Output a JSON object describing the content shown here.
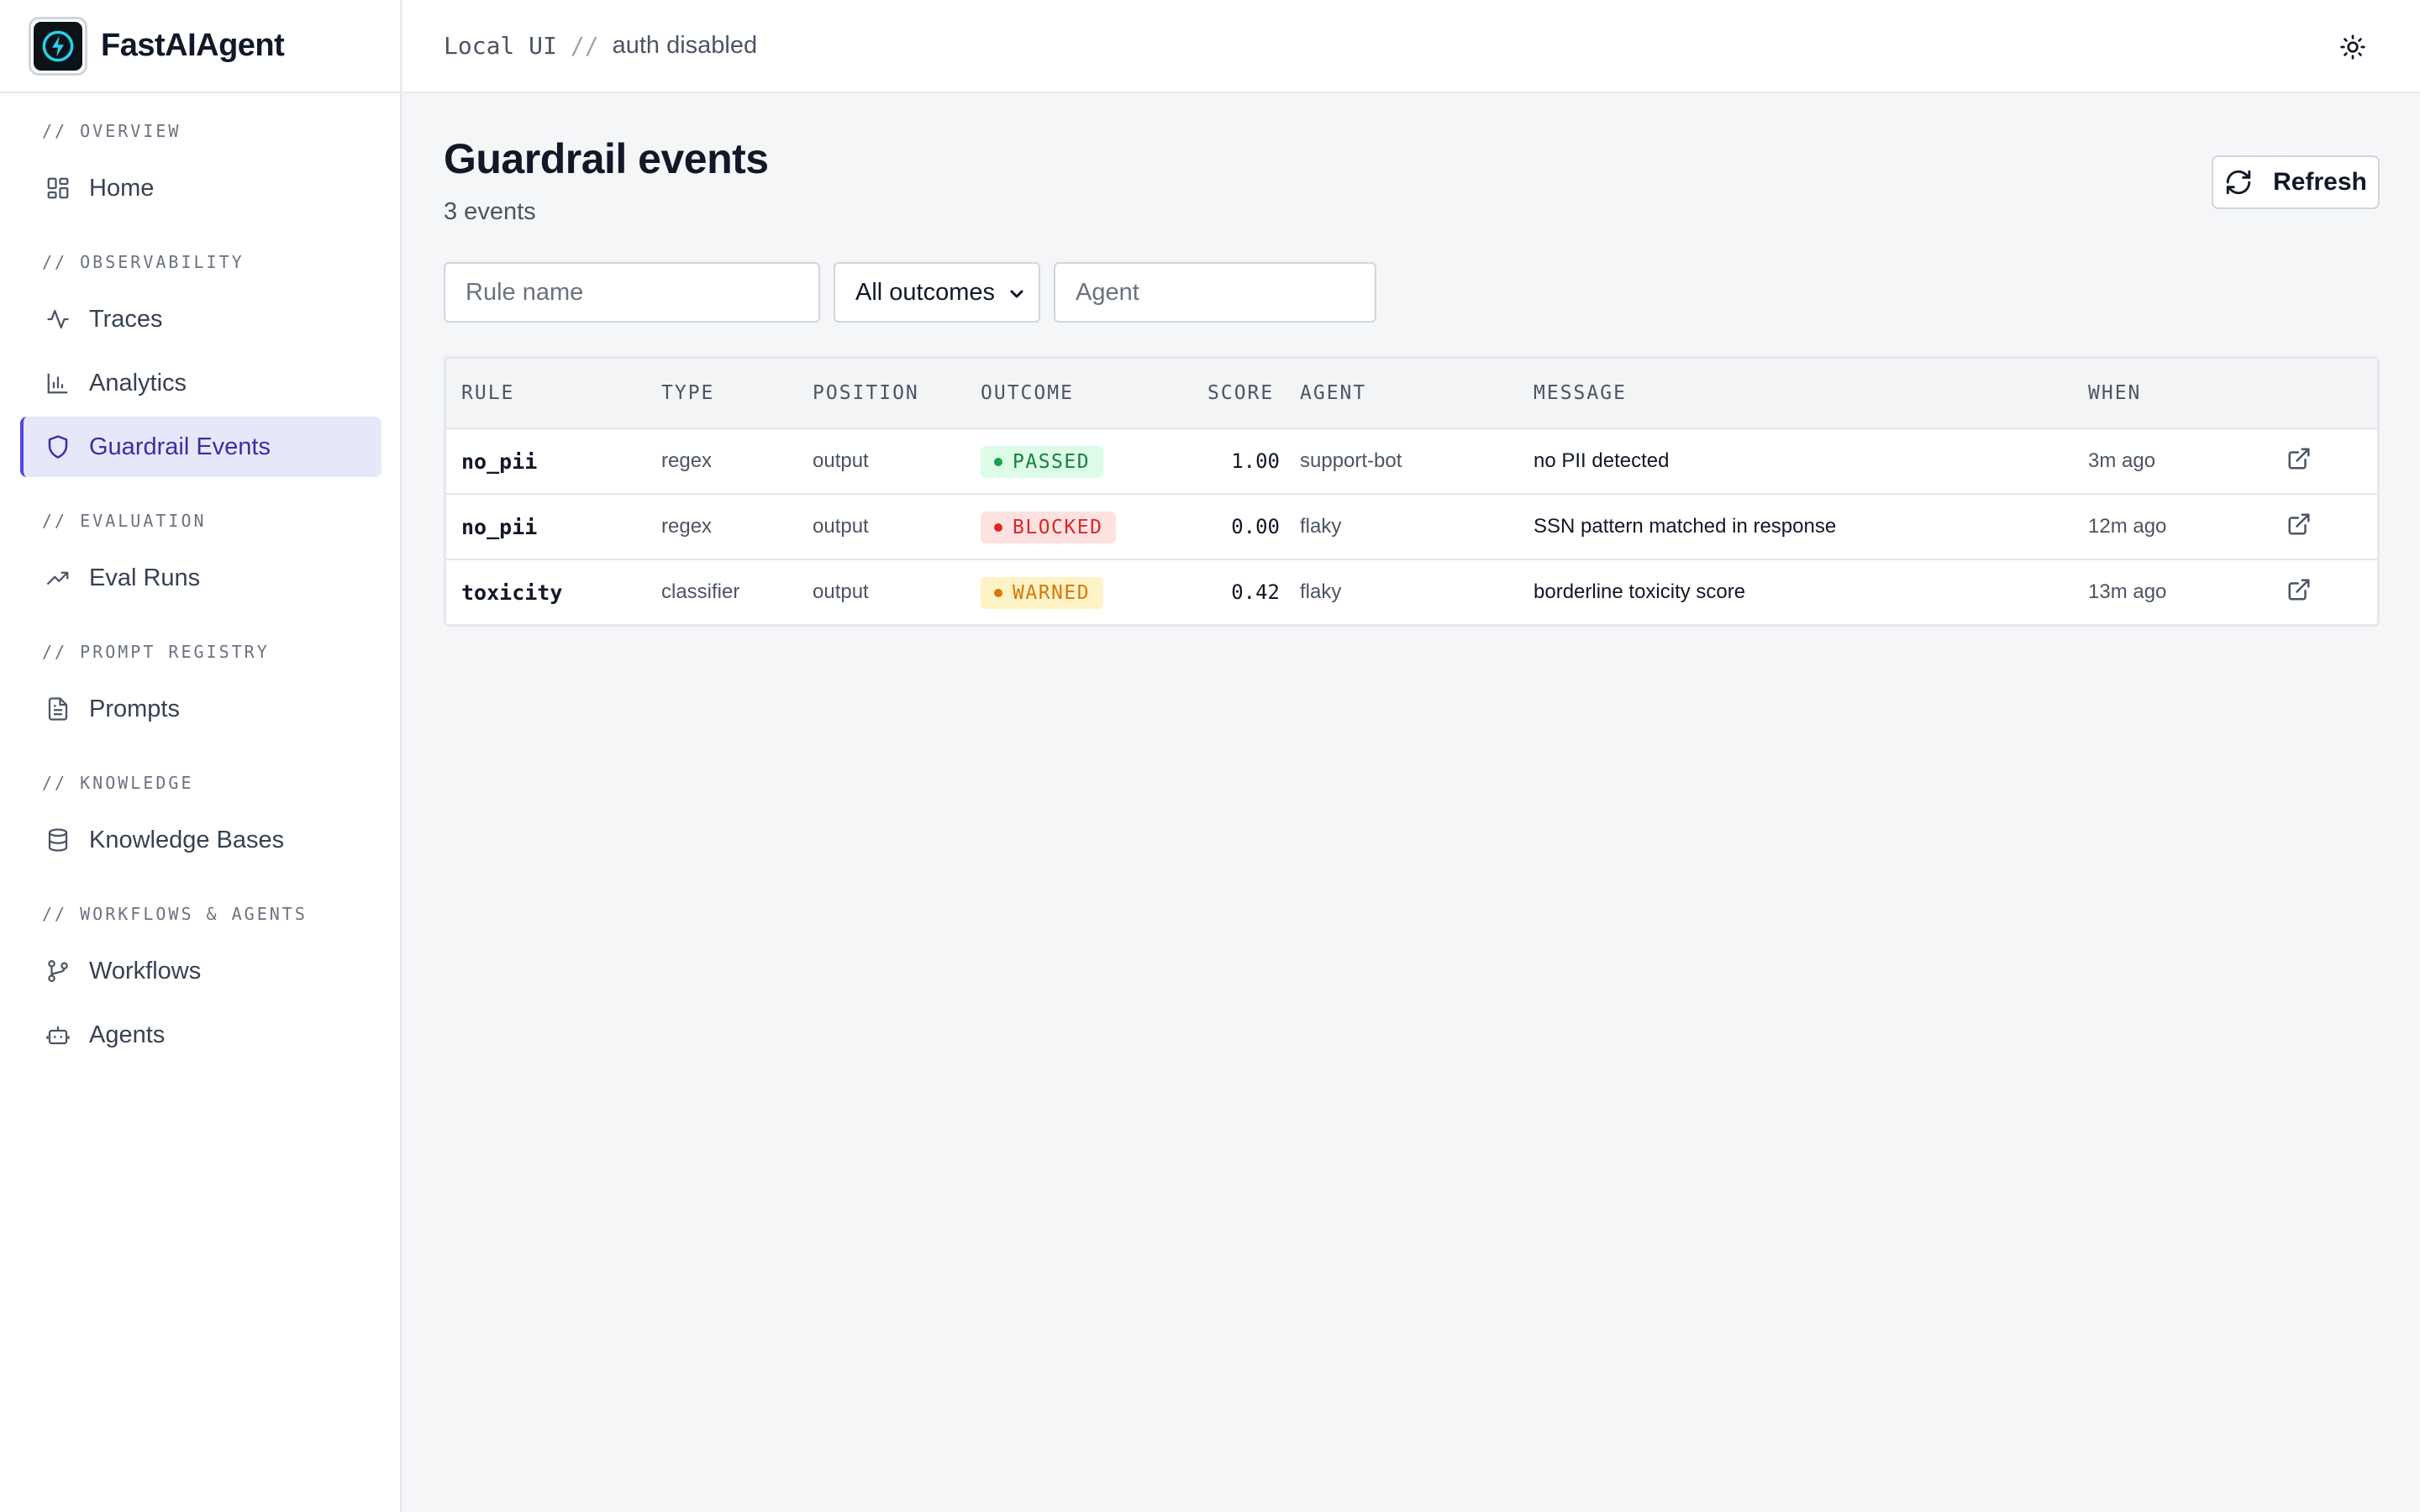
{
  "brand": {
    "name": "FastAIAgent"
  },
  "topbar": {
    "crumb_primary": "Local UI",
    "crumb_separator": "//",
    "crumb_secondary": "auth disabled"
  },
  "sidebar": {
    "sections": [
      {
        "label": "// OVERVIEW",
        "items": [
          {
            "label": "Home",
            "icon": "grid-icon"
          }
        ]
      },
      {
        "label": "// OBSERVABILITY",
        "items": [
          {
            "label": "Traces",
            "icon": "activity-icon"
          },
          {
            "label": "Analytics",
            "icon": "bar-chart-icon"
          },
          {
            "label": "Guardrail Events",
            "icon": "shield-icon",
            "active": true
          }
        ]
      },
      {
        "label": "// EVALUATION",
        "items": [
          {
            "label": "Eval Runs",
            "icon": "trending-up-icon"
          }
        ]
      },
      {
        "label": "// PROMPT REGISTRY",
        "items": [
          {
            "label": "Prompts",
            "icon": "file-text-icon"
          }
        ]
      },
      {
        "label": "// KNOWLEDGE",
        "items": [
          {
            "label": "Knowledge Bases",
            "icon": "database-icon"
          }
        ]
      },
      {
        "label": "// WORKFLOWS & AGENTS",
        "items": [
          {
            "label": "Workflows",
            "icon": "git-branch-icon"
          },
          {
            "label": "Agents",
            "icon": "bot-icon"
          }
        ]
      }
    ]
  },
  "main": {
    "title": "Guardrail events",
    "count": "3 events",
    "refresh_label": "Refresh",
    "filters": {
      "rule_placeholder": "Rule name",
      "outcome_selected": "All outcomes",
      "agent_placeholder": "Agent"
    },
    "table": {
      "columns": [
        "RULE",
        "TYPE",
        "POSITION",
        "OUTCOME",
        "SCORE",
        "AGENT",
        "MESSAGE",
        "WHEN"
      ],
      "rows": [
        {
          "rule": "no_pii",
          "type": "regex",
          "position": "output",
          "outcome": "PASSED",
          "score": "1.00",
          "agent": "support-bot",
          "message": "no PII detected",
          "when": "3m ago"
        },
        {
          "rule": "no_pii",
          "type": "regex",
          "position": "output",
          "outcome": "BLOCKED",
          "score": "0.00",
          "agent": "flaky",
          "message": "SSN pattern matched in response",
          "when": "12m ago"
        },
        {
          "rule": "toxicity",
          "type": "classifier",
          "position": "output",
          "outcome": "WARNED",
          "score": "0.42",
          "agent": "flaky",
          "message": "borderline toxicity score",
          "when": "13m ago"
        }
      ]
    }
  },
  "colors": {
    "accent": "#4f46e5",
    "active_bg": "#e6e8fa",
    "passed": "#16a34a",
    "blocked": "#dc2626",
    "warned": "#d97706"
  }
}
